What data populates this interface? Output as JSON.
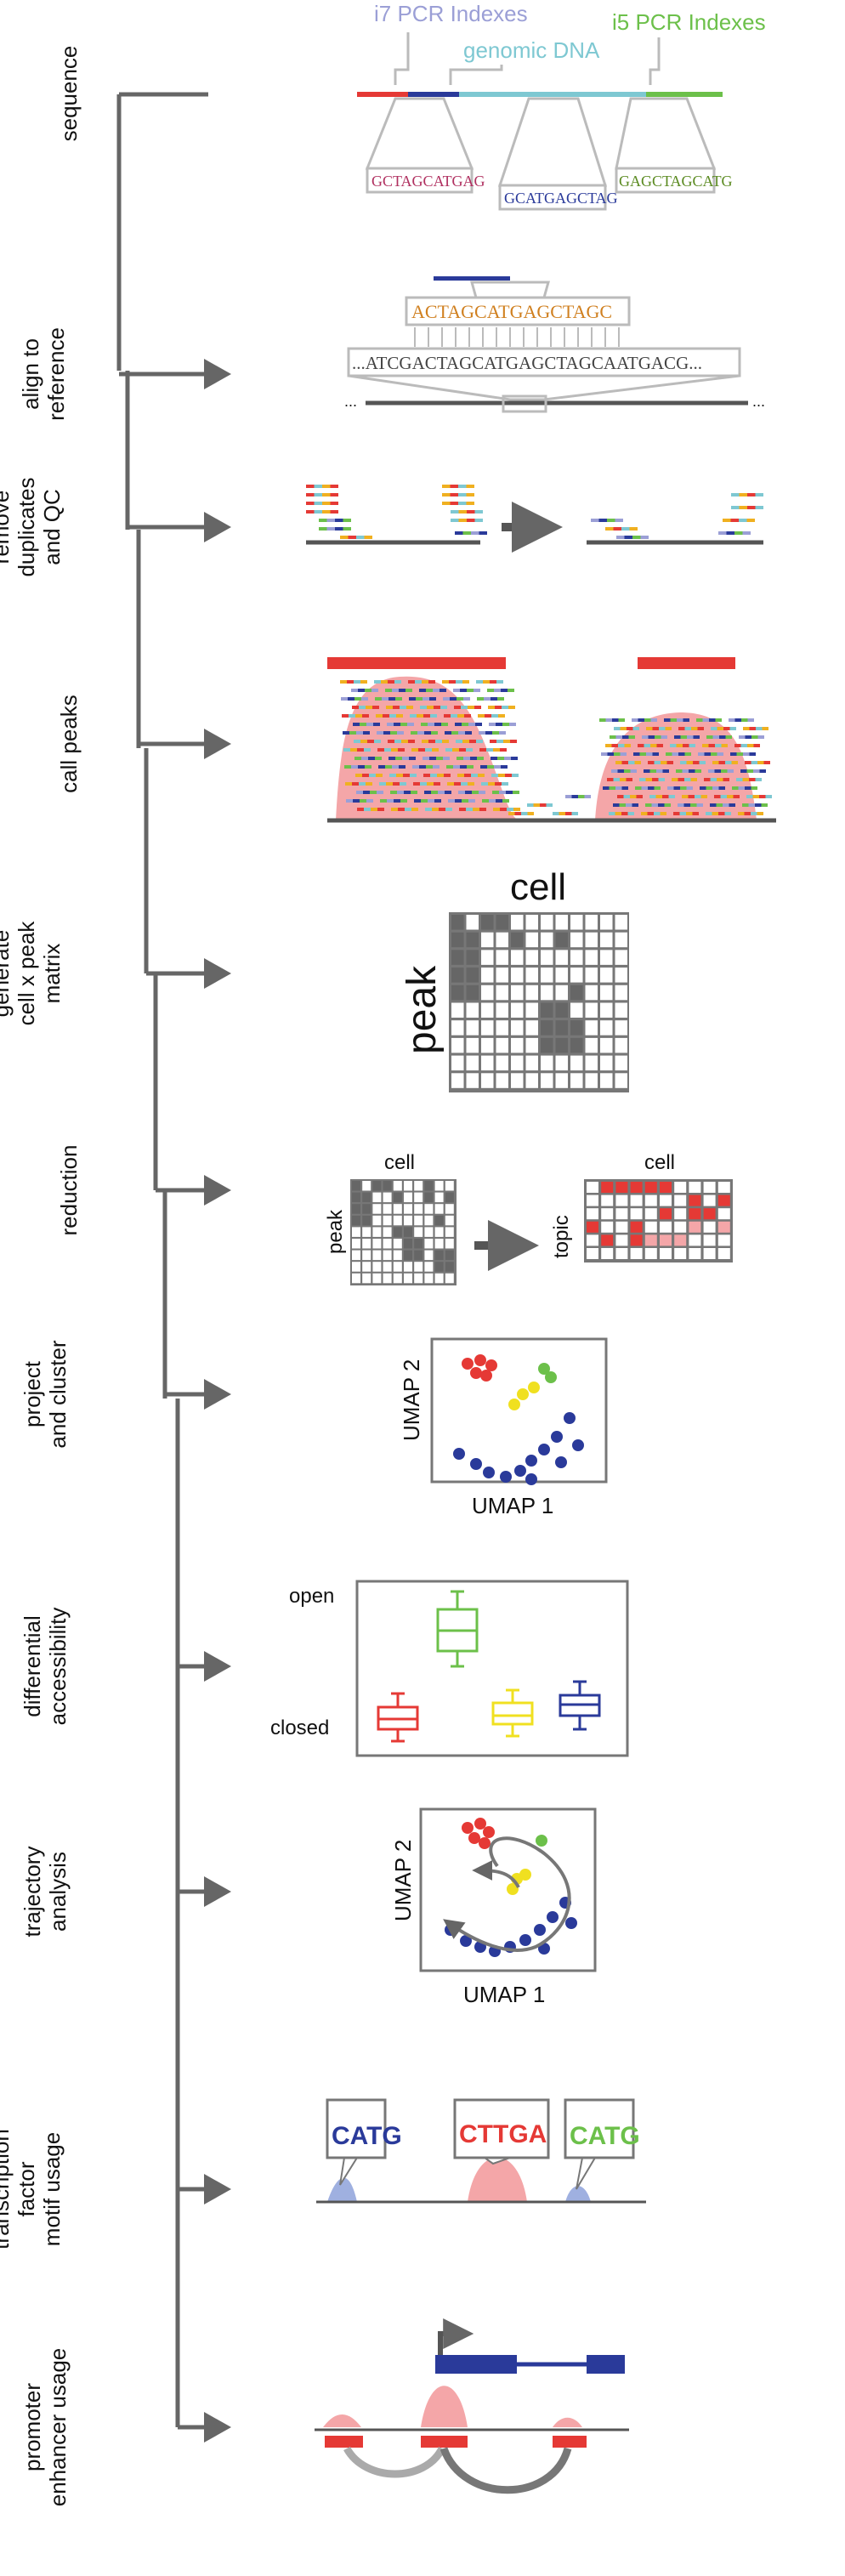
{
  "steps": [
    {
      "line1": "sequence",
      "line2": "",
      "line3": ""
    },
    {
      "line1": "align to",
      "line2": "reference",
      "line3": ""
    },
    {
      "line1": "remove",
      "line2": "duplicates",
      "line3": "and QC"
    },
    {
      "line1": "call peaks",
      "line2": "",
      "line3": ""
    },
    {
      "line1": "generate",
      "line2": "cell x peak",
      "line3": "matrix"
    },
    {
      "line1": "reduction",
      "line2": "",
      "line3": ""
    },
    {
      "line1": "project",
      "line2": "and cluster",
      "line3": ""
    },
    {
      "line1": "differential",
      "line2": "accessibility",
      "line3": ""
    },
    {
      "line1": "trajectory",
      "line2": "analysis",
      "line3": ""
    },
    {
      "line1": "transcription",
      "line2": "factor",
      "line3": "motif usage"
    },
    {
      "line1": "promoter",
      "line2": "enhancer usage",
      "line3": ""
    }
  ],
  "sequence_panel": {
    "i7_label": "i7 PCR Indexes",
    "genomic_label": "genomic DNA",
    "i5_label": "i5 PCR Indexes",
    "read1": "GCTAGCATGAG",
    "read2": "GCATGAGCTAG",
    "read3": "GAGCTAGCATG"
  },
  "align_panel": {
    "read": "ACTAGCATGAGCTAGC",
    "reference": "...ATCGACTAGCATGAGCTAGCAATGACG...",
    "dots_left": "...",
    "dots_right": "..."
  },
  "matrix_panel": {
    "col_label": "cell",
    "row_label": "peak"
  },
  "reduction_panel": {
    "left_col": "cell",
    "left_row": "peak",
    "right_col": "cell",
    "right_row": "topic"
  },
  "cluster_panel": {
    "xlabel": "UMAP 1",
    "ylabel": "UMAP 2"
  },
  "da_panel": {
    "top_label": "open",
    "bottom_label": "closed"
  },
  "trajectory_panel": {
    "xlabel": "UMAP 1",
    "ylabel": "UMAP 2"
  },
  "motif_panel": {
    "logo1": "CATG",
    "logo2": "CTTGA",
    "logo3": "CATG"
  },
  "colors": {
    "i7": "#9b9fd6",
    "genomic": "#7ec8d2",
    "i5": "#6cc04a",
    "red": "#e53935",
    "peakfill": "#f4a6a8",
    "blue": "#2a3a9a",
    "yellow": "#f0e020",
    "green": "#6cc04a",
    "gray": "#555555"
  }
}
